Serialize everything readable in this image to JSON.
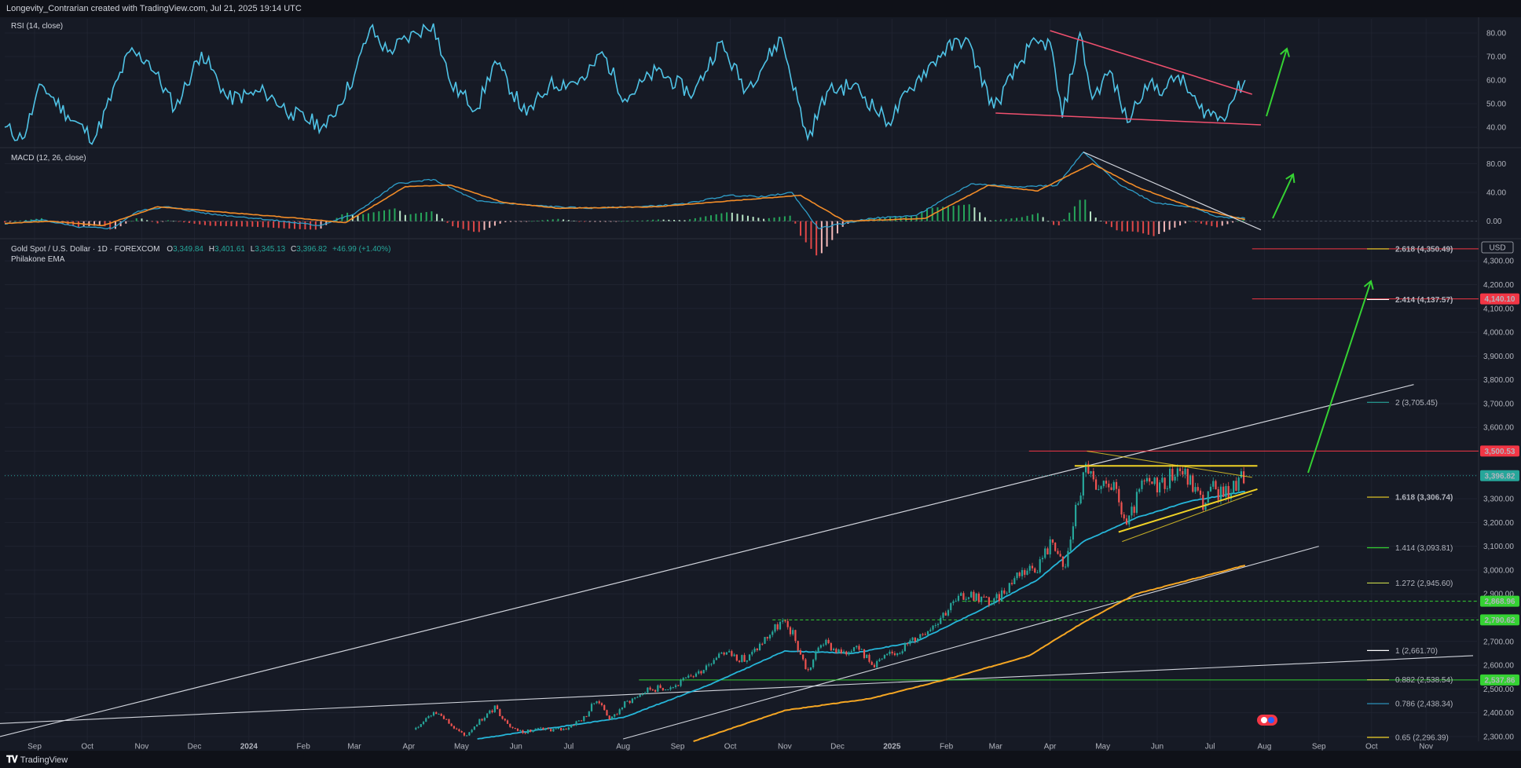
{
  "header": {
    "text": "Longevity_Contrarian created with TradingView.com, Jul 21, 2025 19:14 UTC"
  },
  "footer": {
    "logo_text": "TradingView",
    "logo_icon": "tradingview-logo-icon"
  },
  "colors": {
    "background": "#161a25",
    "rsi_line": "#4fc3e6",
    "macd_line": "#2f9ec9",
    "signal_line": "#f28c28",
    "hist_up": "#26a65b",
    "hist_down": "#e04848",
    "ema_fast": "#26b5d8",
    "ema_slow": "#f5a623",
    "candle_up": "#26a69a",
    "candle_down": "#ef5350",
    "arrow": "#35d233",
    "trend_red": "#f0506e",
    "yellow": "#f0d226",
    "price_line": "#26a69a"
  },
  "panes": {
    "rsi": {
      "label": "RSI (14, close)",
      "ylim": [
        32,
        86
      ],
      "ticks": [
        "80.00",
        "70.00",
        "60.00",
        "50.00",
        "40.00"
      ],
      "tick_values": [
        80,
        70,
        60,
        50,
        40
      ]
    },
    "macd": {
      "label": "MACD (12, 26, close)",
      "ylim": [
        -20,
        100
      ],
      "ticks": [
        "80.00",
        "40.00",
        "0.00"
      ],
      "tick_values": [
        80,
        40,
        0
      ]
    },
    "price": {
      "title": "Gold Spot / U.S. Dollar · 1D · FOREXCOM",
      "ohlc": {
        "o_label": "O",
        "o": "3,349.84",
        "h_label": "H",
        "h": "3,401.61",
        "l_label": "L",
        "l": "3,345.13",
        "c_label": "C",
        "c": "3,396.82",
        "change": "+46.99 (+1.40%)"
      },
      "indicator_label": "Philakone EMA",
      "currency": "USD",
      "ylim": [
        2280,
        4380
      ],
      "ticks": [
        "4,300.00",
        "4,200.00",
        "4,100.00",
        "4,000.00",
        "3,900.00",
        "3,800.00",
        "3,700.00",
        "3,600.00",
        "3,500.00",
        "3,400.00",
        "3,300.00",
        "3,200.00",
        "3,100.00",
        "3,000.00",
        "2,900.00",
        "2,800.00",
        "2,700.00",
        "2,600.00",
        "2,500.00",
        "2,400.00",
        "2,300.00"
      ],
      "tick_values": [
        4300,
        4200,
        4100,
        4000,
        3900,
        3800,
        3700,
        3600,
        3500,
        3400,
        3300,
        3200,
        3100,
        3000,
        2900,
        2800,
        2700,
        2600,
        2500,
        2400,
        2300
      ],
      "price_badges": [
        {
          "text": "4,140.10",
          "value": 4140.1,
          "color": "#f23645"
        },
        {
          "text": "3,500.53",
          "value": 3500.53,
          "color": "#f23645"
        },
        {
          "text": "3,396.82",
          "value": 3396.82,
          "color": "#26a69a"
        },
        {
          "text": "2,868.96",
          "value": 2868.96,
          "color": "#35d233"
        },
        {
          "text": "2,790.62",
          "value": 2790.62,
          "color": "#35d233"
        },
        {
          "text": "2,537.86",
          "value": 2537.86,
          "color": "#35d233"
        }
      ],
      "fib_levels": [
        {
          "text": "2.618 (4,350.49)",
          "value": 4350.49,
          "color": "#f0d226",
          "bold": true
        },
        {
          "text": "2.414 (4,137.57)",
          "value": 4137.57,
          "color": "#ffffff",
          "bold": true
        },
        {
          "text": "2 (3,705.45)",
          "value": 3705.45,
          "color": "#26a69a",
          "bold": false
        },
        {
          "text": "1.618 (3,306.74)",
          "value": 3306.74,
          "color": "#f0d226",
          "bold": true
        },
        {
          "text": "1.414 (3,093.81)",
          "value": 3093.81,
          "color": "#35d233",
          "bold": false
        },
        {
          "text": "1.272 (2,945.60)",
          "value": 2945.6,
          "color": "#c8d64a",
          "bold": false
        },
        {
          "text": "1 (2,661.70)",
          "value": 2661.7,
          "color": "#ffffff",
          "bold": false
        },
        {
          "text": "0.882 (2,538.54)",
          "value": 2538.54,
          "color": "#c8d64a",
          "bold": false
        },
        {
          "text": "0.786 (2,438.34)",
          "value": 2438.34,
          "color": "#2f9ec9",
          "bold": false
        },
        {
          "text": "0.65 (2,296.39)",
          "value": 2296.39,
          "color": "#f0d226",
          "bold": false
        }
      ]
    }
  },
  "time_axis": {
    "labels": [
      {
        "text": "Sep",
        "bold": false
      },
      {
        "text": "Oct",
        "bold": false
      },
      {
        "text": "Nov",
        "bold": false
      },
      {
        "text": "Dec",
        "bold": false
      },
      {
        "text": "2024",
        "bold": true
      },
      {
        "text": "Feb",
        "bold": false
      },
      {
        "text": "Mar",
        "bold": false
      },
      {
        "text": "Apr",
        "bold": false
      },
      {
        "text": "May",
        "bold": false
      },
      {
        "text": "Jun",
        "bold": false
      },
      {
        "text": "Jul",
        "bold": false
      },
      {
        "text": "Aug",
        "bold": false
      },
      {
        "text": "Sep",
        "bold": false
      },
      {
        "text": "Oct",
        "bold": false
      },
      {
        "text": "Nov",
        "bold": false
      },
      {
        "text": "Dec",
        "bold": false
      },
      {
        "text": "2025",
        "bold": true
      },
      {
        "text": "Feb",
        "bold": false
      },
      {
        "text": "Mar",
        "bold": false
      },
      {
        "text": "Apr",
        "bold": false
      },
      {
        "text": "May",
        "bold": false
      },
      {
        "text": "Jun",
        "bold": false
      },
      {
        "text": "Jul",
        "bold": false
      },
      {
        "text": "Aug",
        "bold": false
      },
      {
        "text": "Sep",
        "bold": false
      },
      {
        "text": "Oct",
        "bold": false
      },
      {
        "text": "Nov",
        "bold": false
      }
    ]
  },
  "chart_data": {
    "type": "line",
    "title": "Gold Spot / U.S. Dollar · 1D · FOREXCOM",
    "x_unit": "months",
    "x_range": [
      "2023-08-15",
      "2025-11-30"
    ],
    "price_series": {
      "name": "",
      "points": [
        [
          "2024-04-05",
          2330
        ],
        [
          "2024-04-12",
          2390
        ],
        [
          "2024-04-19",
          2400
        ],
        [
          "2024-04-26",
          2340
        ],
        [
          "2024-05-03",
          2300
        ],
        [
          "2024-05-10",
          2360
        ],
        [
          "2024-05-20",
          2420
        ],
        [
          "2024-05-31",
          2330
        ],
        [
          "2024-06-07",
          2320
        ],
        [
          "2024-06-14",
          2330
        ],
        [
          "2024-06-28",
          2330
        ],
        [
          "2024-07-10",
          2380
        ],
        [
          "2024-07-17",
          2460
        ],
        [
          "2024-07-25",
          2370
        ],
        [
          "2024-08-02",
          2440
        ],
        [
          "2024-08-16",
          2500
        ],
        [
          "2024-08-30",
          2510
        ],
        [
          "2024-09-13",
          2570
        ],
        [
          "2024-09-26",
          2660
        ],
        [
          "2024-10-10",
          2620
        ],
        [
          "2024-10-22",
          2720
        ],
        [
          "2024-10-30",
          2780
        ],
        [
          "2024-11-05",
          2740
        ],
        [
          "2024-11-14",
          2570
        ],
        [
          "2024-11-22",
          2700
        ],
        [
          "2024-12-05",
          2640
        ],
        [
          "2024-12-12",
          2700
        ],
        [
          "2024-12-20",
          2600
        ],
        [
          "2025-01-02",
          2650
        ],
        [
          "2025-01-10",
          2690
        ],
        [
          "2025-01-24",
          2770
        ],
        [
          "2025-02-05",
          2860
        ],
        [
          "2025-02-14",
          2900
        ],
        [
          "2025-02-28",
          2860
        ],
        [
          "2025-03-14",
          2990
        ],
        [
          "2025-03-25",
          3020
        ],
        [
          "2025-04-03",
          3130
        ],
        [
          "2025-04-09",
          2980
        ],
        [
          "2025-04-15",
          3230
        ],
        [
          "2025-04-22",
          3450
        ],
        [
          "2025-04-28",
          3300
        ],
        [
          "2025-05-05",
          3380
        ],
        [
          "2025-05-15",
          3180
        ],
        [
          "2025-05-23",
          3350
        ],
        [
          "2025-06-05",
          3370
        ],
        [
          "2025-06-13",
          3430
        ],
        [
          "2025-06-20",
          3370
        ],
        [
          "2025-06-27",
          3280
        ],
        [
          "2025-07-03",
          3340
        ],
        [
          "2025-07-10",
          3320
        ],
        [
          "2025-07-21",
          3396.82
        ]
      ]
    },
    "ema_fast": {
      "name": "",
      "points": [
        [
          "2024-05-10",
          2290
        ],
        [
          "2024-08-01",
          2380
        ],
        [
          "2024-09-20",
          2520
        ],
        [
          "2024-11-01",
          2660
        ],
        [
          "2024-12-10",
          2650
        ],
        [
          "2025-01-15",
          2700
        ],
        [
          "2025-02-20",
          2830
        ],
        [
          "2025-03-25",
          2960
        ],
        [
          "2025-04-20",
          3120
        ],
        [
          "2025-05-20",
          3220
        ],
        [
          "2025-06-20",
          3290
        ],
        [
          "2025-07-21",
          3330
        ]
      ]
    },
    "ema_slow": {
      "name": "",
      "points": [
        [
          "2024-09-10",
          2280
        ],
        [
          "2024-11-01",
          2410
        ],
        [
          "2024-12-20",
          2460
        ],
        [
          "2025-02-01",
          2540
        ],
        [
          "2025-03-20",
          2640
        ],
        [
          "2025-04-20",
          2780
        ],
        [
          "2025-05-20",
          2900
        ],
        [
          "2025-07-21",
          3020
        ]
      ]
    },
    "rsi_series": {
      "name": "",
      "points": [
        [
          "2023-08-15",
          40
        ],
        [
          "2023-08-25",
          35
        ],
        [
          "2023-09-05",
          58
        ],
        [
          "2023-09-20",
          45
        ],
        [
          "2023-10-05",
          35
        ],
        [
          "2023-10-25",
          72
        ],
        [
          "2023-11-05",
          68
        ],
        [
          "2023-11-20",
          48
        ],
        [
          "2023-12-05",
          72
        ],
        [
          "2023-12-20",
          52
        ],
        [
          "2024-01-10",
          55
        ],
        [
          "2024-01-25",
          46
        ],
        [
          "2024-02-14",
          40
        ],
        [
          "2024-03-01",
          62
        ],
        [
          "2024-03-10",
          82
        ],
        [
          "2024-03-20",
          72
        ],
        [
          "2024-04-05",
          80
        ],
        [
          "2024-04-15",
          84
        ],
        [
          "2024-04-25",
          58
        ],
        [
          "2024-05-10",
          48
        ],
        [
          "2024-05-20",
          68
        ],
        [
          "2024-06-07",
          45
        ],
        [
          "2024-06-20",
          58
        ],
        [
          "2024-07-10",
          60
        ],
        [
          "2024-07-20",
          72
        ],
        [
          "2024-08-02",
          52
        ],
        [
          "2024-08-20",
          64
        ],
        [
          "2024-09-10",
          54
        ],
        [
          "2024-09-25",
          76
        ],
        [
          "2024-10-10",
          56
        ],
        [
          "2024-10-30",
          78
        ],
        [
          "2024-11-14",
          35
        ],
        [
          "2024-11-25",
          55
        ],
        [
          "2024-12-10",
          58
        ],
        [
          "2024-12-30",
          42
        ],
        [
          "2025-01-15",
          60
        ],
        [
          "2025-01-30",
          72
        ],
        [
          "2025-02-12",
          78
        ],
        [
          "2025-02-28",
          48
        ],
        [
          "2025-03-20",
          74
        ],
        [
          "2025-04-01",
          76
        ],
        [
          "2025-04-08",
          44
        ],
        [
          "2025-04-18",
          80
        ],
        [
          "2025-04-25",
          52
        ],
        [
          "2025-05-05",
          64
        ],
        [
          "2025-05-15",
          42
        ],
        [
          "2025-05-25",
          58
        ],
        [
          "2025-06-05",
          56
        ],
        [
          "2025-06-13",
          62
        ],
        [
          "2025-06-25",
          48
        ],
        [
          "2025-07-08",
          44
        ],
        [
          "2025-07-16",
          55
        ],
        [
          "2025-07-21",
          60
        ]
      ]
    },
    "macd_line": {
      "name": "",
      "points": [
        [
          "2023-08-15",
          -4
        ],
        [
          "2023-09-05",
          2
        ],
        [
          "2023-09-25",
          -8
        ],
        [
          "2023-10-15",
          -10
        ],
        [
          "2023-10-30",
          14
        ],
        [
          "2023-11-15",
          20
        ],
        [
          "2023-12-10",
          10
        ],
        [
          "2024-01-05",
          4
        ],
        [
          "2024-02-10",
          -6
        ],
        [
          "2024-03-01",
          10
        ],
        [
          "2024-03-25",
          52
        ],
        [
          "2024-04-15",
          58
        ],
        [
          "2024-05-10",
          28
        ],
        [
          "2024-06-10",
          22
        ],
        [
          "2024-07-10",
          18
        ],
        [
          "2024-08-10",
          20
        ],
        [
          "2024-09-05",
          24
        ],
        [
          "2024-09-30",
          36
        ],
        [
          "2024-10-20",
          34
        ],
        [
          "2024-11-05",
          40
        ],
        [
          "2024-11-20",
          -10
        ],
        [
          "2024-12-20",
          4
        ],
        [
          "2025-01-15",
          8
        ],
        [
          "2025-02-15",
          52
        ],
        [
          "2025-03-15",
          48
        ],
        [
          "2025-04-05",
          50
        ],
        [
          "2025-04-20",
          96
        ],
        [
          "2025-05-10",
          52
        ],
        [
          "2025-05-30",
          26
        ],
        [
          "2025-06-20",
          20
        ],
        [
          "2025-07-05",
          6
        ],
        [
          "2025-07-21",
          4
        ]
      ]
    },
    "signal_line": {
      "name": "",
      "points": [
        [
          "2023-08-15",
          -3
        ],
        [
          "2023-09-10",
          0
        ],
        [
          "2023-10-10",
          -6
        ],
        [
          "2023-11-10",
          20
        ],
        [
          "2023-12-20",
          12
        ],
        [
          "2024-01-30",
          4
        ],
        [
          "2024-02-25",
          -2
        ],
        [
          "2024-03-30",
          48
        ],
        [
          "2024-04-25",
          50
        ],
        [
          "2024-05-25",
          26
        ],
        [
          "2024-06-25",
          18
        ],
        [
          "2024-08-20",
          20
        ],
        [
          "2024-10-10",
          30
        ],
        [
          "2024-11-10",
          36
        ],
        [
          "2024-12-05",
          0
        ],
        [
          "2025-01-20",
          4
        ],
        [
          "2025-02-25",
          50
        ],
        [
          "2025-03-25",
          42
        ],
        [
          "2025-04-25",
          80
        ],
        [
          "2025-05-20",
          48
        ],
        [
          "2025-06-20",
          20
        ],
        [
          "2025-07-21",
          2
        ]
      ]
    }
  }
}
